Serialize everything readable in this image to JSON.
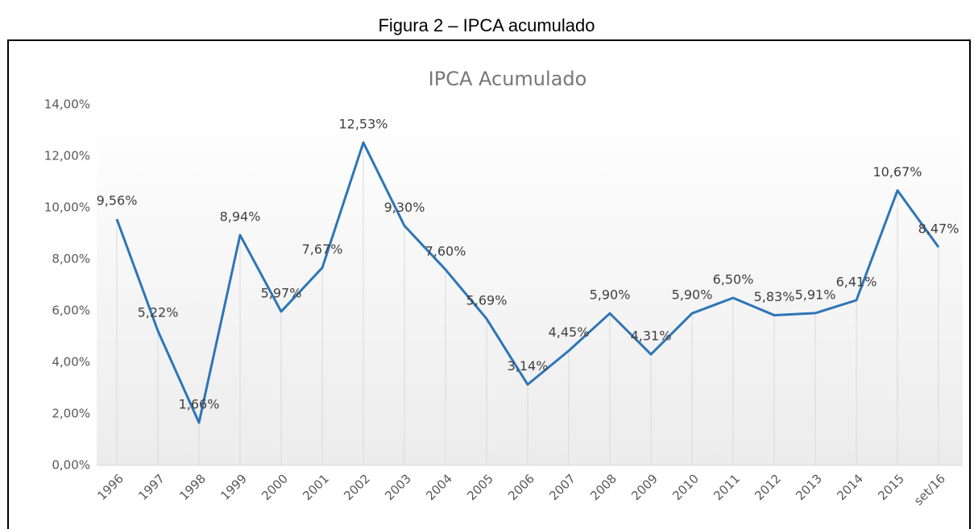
{
  "caption": "Figura 2 – IPCA acumulado",
  "chart_data": {
    "type": "line",
    "title": "IPCA Acumulado",
    "categories": [
      "1996",
      "1997",
      "1998",
      "1999",
      "2000",
      "2001",
      "2002",
      "2003",
      "2004",
      "2005",
      "2006",
      "2007",
      "2008",
      "2009",
      "2010",
      "2011",
      "2012",
      "2013",
      "2014",
      "2015",
      "set/16"
    ],
    "values": [
      9.56,
      5.22,
      1.66,
      8.94,
      5.97,
      7.67,
      12.53,
      9.3,
      7.6,
      5.69,
      3.14,
      4.45,
      5.9,
      4.31,
      5.9,
      6.5,
      5.83,
      5.91,
      6.41,
      10.67,
      8.47
    ],
    "value_labels": [
      "9,56%",
      "5,22%",
      "1,66%",
      "8,94%",
      "5,97%",
      "7,67%",
      "12,53%",
      "9,30%",
      "7,60%",
      "5,69%",
      "3,14%",
      "4,45%",
      "5,90%",
      "4,31%",
      "5,90%",
      "6,50%",
      "5,83%",
      "5,91%",
      "6,41%",
      "10,67%",
      "8,47%"
    ],
    "color": "#2e75b6",
    "ylim": [
      0,
      14
    ],
    "yticks": [
      {
        "value": 0,
        "label": "0,00%"
      },
      {
        "value": 2,
        "label": "2,00%"
      },
      {
        "value": 4,
        "label": "4,00%"
      },
      {
        "value": 6,
        "label": "6,00%"
      },
      {
        "value": 8,
        "label": "8,00%"
      },
      {
        "value": 10,
        "label": "10,00%"
      },
      {
        "value": 12,
        "label": "12,00%"
      },
      {
        "value": 14,
        "label": "14,00%"
      }
    ],
    "grid": false
  }
}
